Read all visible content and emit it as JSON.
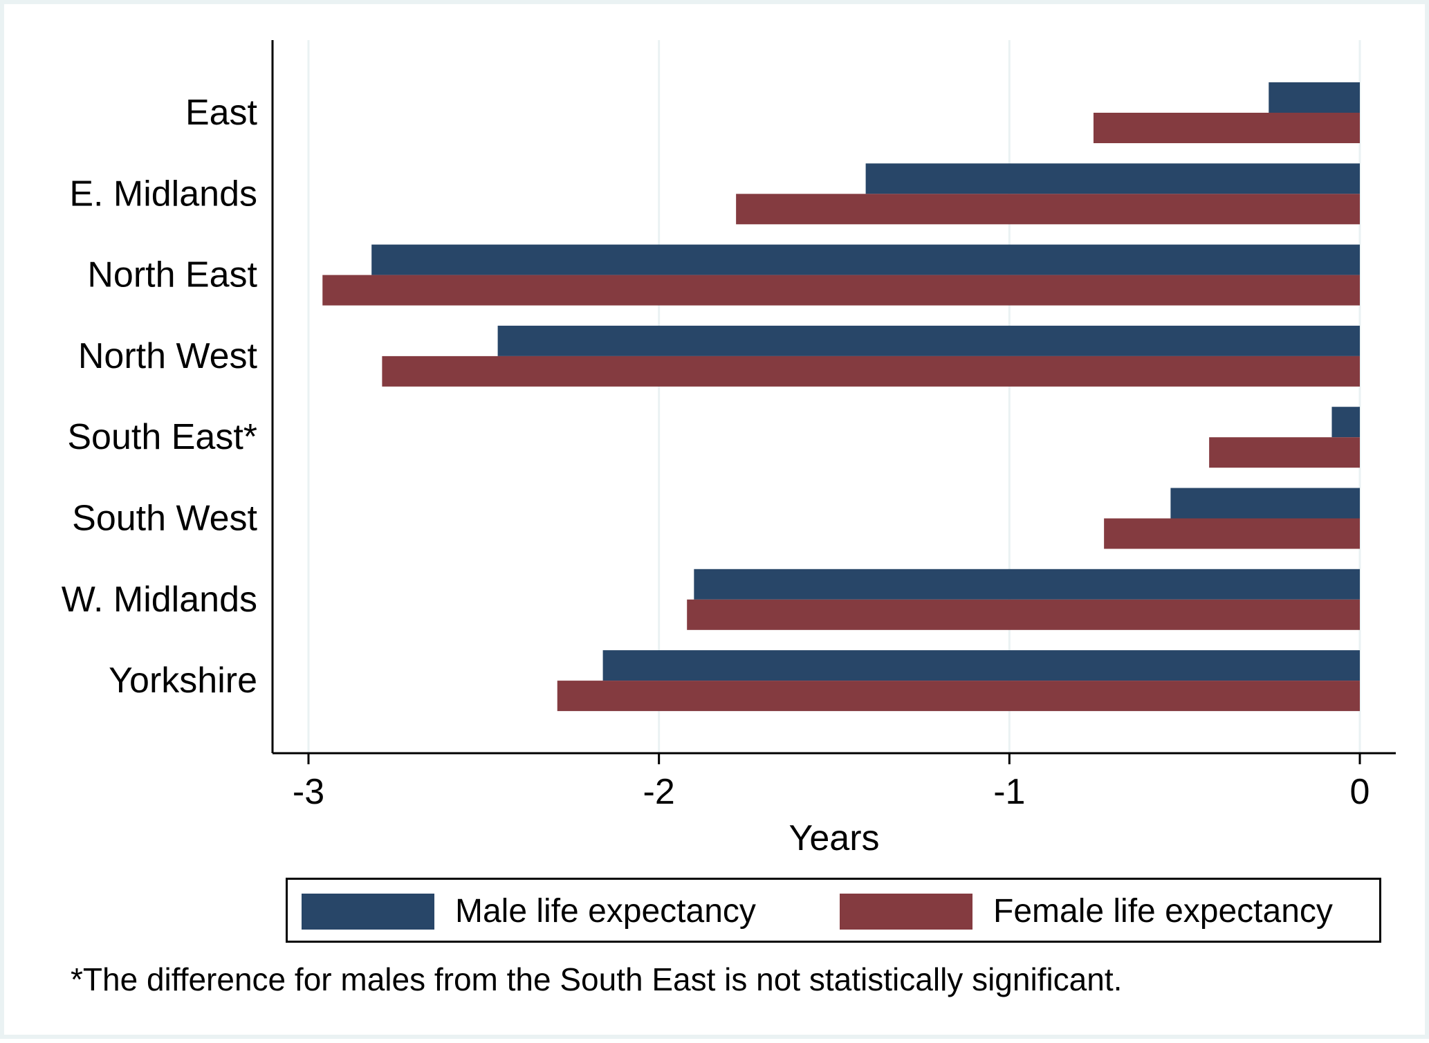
{
  "chart_data": {
    "type": "bar",
    "orientation": "horizontal",
    "title": "",
    "xlabel": "Years",
    "ylabel": "",
    "xlim": [
      -3.1,
      0.1
    ],
    "xticks": [
      -3,
      -2,
      -1,
      0
    ],
    "xtick_labels": [
      "-3",
      "-2",
      "-1",
      "0"
    ],
    "grid": true,
    "legend_position": "bottom",
    "categories": [
      "East",
      "E. Midlands",
      "North East",
      "North West",
      "South East*",
      "South West",
      "W. Midlands",
      "Yorkshire"
    ],
    "series": [
      {
        "name": "Male life expectancy",
        "color": "#284668",
        "values": [
          -0.26,
          -1.41,
          -2.82,
          -2.46,
          -0.08,
          -0.54,
          -1.9,
          -2.16
        ]
      },
      {
        "name": "Female life expectancy",
        "color": "#843b40",
        "values": [
          -0.76,
          -1.78,
          -2.96,
          -2.79,
          -0.43,
          -0.73,
          -1.92,
          -2.29
        ]
      }
    ]
  },
  "note": "*The difference for males from the South East is not statistically significant."
}
